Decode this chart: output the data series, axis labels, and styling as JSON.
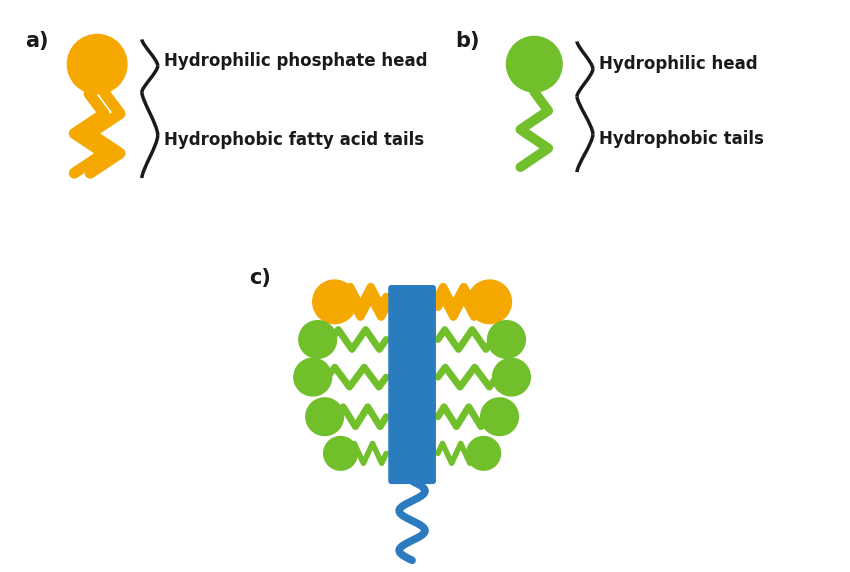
{
  "bg_color": "#ffffff",
  "orange": "#F5A800",
  "green": "#70BF2B",
  "blue": "#2B7BBF",
  "black": "#1a1a1a",
  "label_a": "a)",
  "label_b": "b)",
  "label_c": "c)",
  "text_head_a": "Hydrophilic phosphate head",
  "text_tail_a": "Hydrophobic fatty acid tails",
  "text_head_b": "Hydrophilic head",
  "text_tail_b": "Hydrophobic tails",
  "font_size_label": 15,
  "font_size_text": 12
}
